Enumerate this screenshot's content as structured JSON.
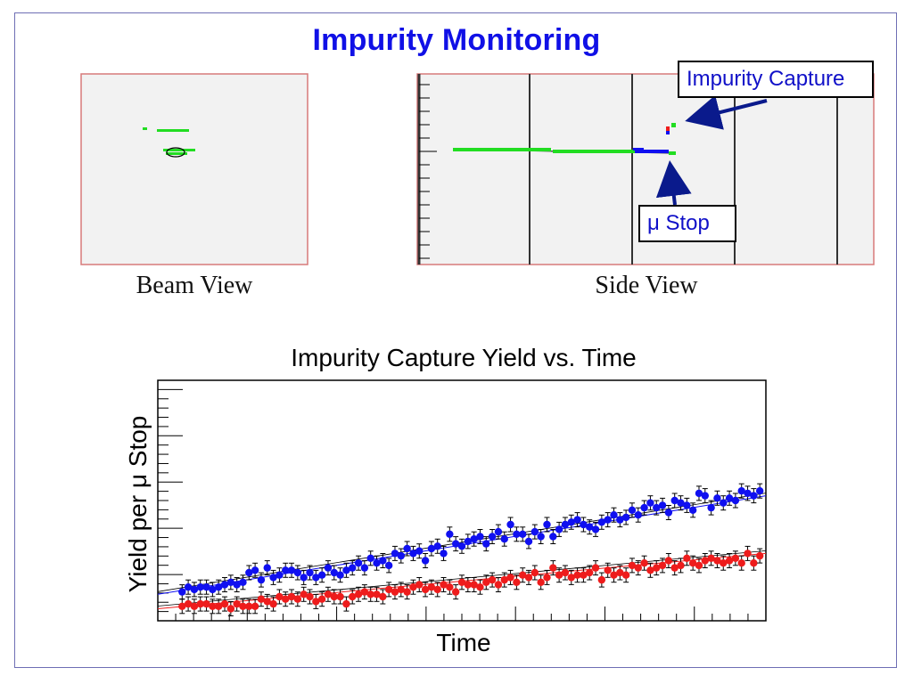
{
  "slide": {
    "title": "Impurity Monitoring",
    "beam_view_label": "Beam View",
    "side_view_label": "Side View",
    "callout_capture": "Impurity Capture",
    "callout_stop": "μ Stop"
  },
  "colors": {
    "title": "#1010e6",
    "frame": "#6e6eb4",
    "panel_bg": "#f2f2f2",
    "panel_border": "#d77a7a",
    "track_green": "#22dd22",
    "series_blue": "#1010f0",
    "series_red": "#ee1c1c",
    "arrow": "#0a1a8c"
  },
  "chart_data": {
    "type": "scatter",
    "title": "Impurity Capture Yield vs. Time",
    "xlabel": "Time",
    "ylabel": "Yield per μ Stop",
    "xlim": [
      0,
      100
    ],
    "ylim": [
      0,
      100
    ],
    "x_tick_labels_shown": false,
    "y_tick_labels_shown": false,
    "error_bars": true,
    "fit_lines": true,
    "series": [
      {
        "color": "#1010f0",
        "x": [
          4,
          5,
          6,
          7,
          8,
          9,
          10,
          11,
          12,
          13,
          14,
          15,
          16,
          17,
          18,
          19,
          20,
          21,
          22,
          23,
          24,
          25,
          26,
          27,
          28,
          29,
          30,
          31,
          32,
          33,
          34,
          35,
          36,
          37,
          38,
          39,
          40,
          41,
          42,
          43,
          44,
          45,
          46,
          47,
          48,
          49,
          50,
          51,
          52,
          53,
          54,
          55,
          56,
          57,
          58,
          59,
          60,
          61,
          62,
          63,
          64,
          65,
          66,
          67,
          68,
          69,
          70,
          71,
          72,
          73,
          74,
          75,
          76,
          77,
          78,
          79,
          80,
          81,
          82,
          83,
          84,
          85,
          86,
          87,
          88,
          89,
          90,
          91,
          92,
          93,
          94,
          95,
          96,
          97,
          98,
          99
        ],
        "y": [
          12,
          14,
          13,
          14,
          14,
          13,
          14,
          15,
          16,
          15,
          16,
          20,
          21,
          17,
          22,
          18,
          19,
          21,
          21,
          20,
          18,
          20,
          18,
          19,
          22,
          20,
          19,
          21,
          22,
          24,
          22,
          26,
          24,
          25,
          23,
          28,
          27,
          30,
          28,
          29,
          25,
          30,
          31,
          28,
          36,
          32,
          31,
          33,
          34,
          35,
          32,
          35,
          37,
          34,
          40,
          36,
          36,
          33,
          37,
          35,
          40,
          35,
          38,
          40,
          41,
          42,
          40,
          39,
          38,
          41,
          42,
          44,
          42,
          43,
          46,
          44,
          47,
          49,
          47,
          48,
          45,
          50,
          49,
          48,
          46,
          53,
          52,
          47,
          51,
          49,
          51,
          50,
          54,
          53,
          52,
          54
        ],
        "fit": [
          [
            0,
            11
          ],
          [
            100,
            52
          ]
        ]
      },
      {
        "color": "#ee1c1c",
        "x": [
          4,
          5,
          6,
          7,
          8,
          9,
          10,
          11,
          12,
          13,
          14,
          15,
          16,
          17,
          18,
          19,
          20,
          21,
          22,
          23,
          24,
          25,
          26,
          27,
          28,
          29,
          30,
          31,
          32,
          33,
          34,
          35,
          36,
          37,
          38,
          39,
          40,
          41,
          42,
          43,
          44,
          45,
          46,
          47,
          48,
          49,
          50,
          51,
          52,
          53,
          54,
          55,
          56,
          57,
          58,
          59,
          60,
          61,
          62,
          63,
          64,
          65,
          66,
          67,
          68,
          69,
          70,
          71,
          72,
          73,
          74,
          75,
          76,
          77,
          78,
          79,
          80,
          81,
          82,
          83,
          84,
          85,
          86,
          87,
          88,
          89,
          90,
          91,
          92,
          93,
          94,
          95,
          96,
          97,
          98,
          99
        ],
        "y": [
          6,
          7,
          6,
          7,
          7,
          6,
          6,
          7,
          5,
          7,
          6,
          6,
          6,
          9,
          8,
          7,
          10,
          9,
          10,
          9,
          11,
          10,
          8,
          9,
          11,
          10,
          10,
          7,
          10,
          11,
          12,
          11,
          11,
          10,
          13,
          12,
          13,
          12,
          14,
          15,
          13,
          14,
          13,
          15,
          14,
          12,
          16,
          15,
          15,
          14,
          16,
          17,
          15,
          17,
          18,
          16,
          19,
          18,
          20,
          16,
          18,
          22,
          19,
          20,
          18,
          19,
          19,
          20,
          22,
          17,
          21,
          19,
          20,
          19,
          23,
          22,
          24,
          21,
          22,
          23,
          25,
          22,
          23,
          26,
          24,
          23,
          25,
          26,
          25,
          24,
          25,
          26,
          24,
          28,
          24,
          27
        ],
        "fit": [
          [
            0,
            5
          ],
          [
            100,
            28
          ]
        ]
      }
    ]
  }
}
